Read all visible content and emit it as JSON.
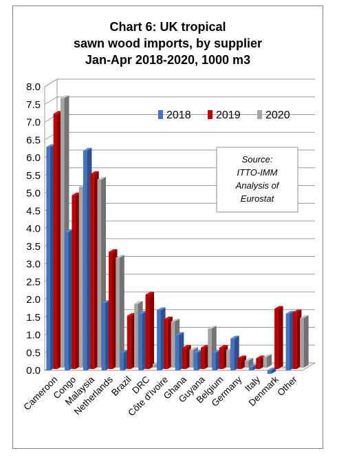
{
  "chart_data": {
    "type": "bar",
    "title_lines": [
      "Chart 6: UK tropical",
      "sawn wood imports, by supplier",
      "Jan-Apr 2018-2020, 1000 m3"
    ],
    "categories": [
      "Cameroon",
      "Congo",
      "Malaysia",
      "Netherlands",
      "Brazil",
      "DRC",
      "Côte d'Ivoire",
      "Ghana",
      "Guyana",
      "Belgium",
      "Germany",
      "Italy",
      "Denmark",
      "Other"
    ],
    "series": [
      {
        "name": "2018",
        "color": "#4472c4",
        "values": [
          6.3,
          3.9,
          6.2,
          1.9,
          0.5,
          1.6,
          1.7,
          1.0,
          0.5,
          0.5,
          0.9,
          0.1,
          -0.1,
          1.6
        ]
      },
      {
        "name": "2019",
        "color": "#c00000",
        "values": [
          7.2,
          4.9,
          5.5,
          3.3,
          1.5,
          2.1,
          1.4,
          0.6,
          0.6,
          0.6,
          0.3,
          0.3,
          1.7,
          1.6
        ]
      },
      {
        "name": "2020",
        "color": "#a5a5a5",
        "values": [
          7.6,
          5.1,
          5.3,
          3.1,
          1.8,
          0.1,
          1.3,
          0.5,
          1.1,
          0.5,
          0.2,
          0.3,
          0.0,
          1.4
        ]
      }
    ],
    "ylim": [
      0,
      8
    ],
    "yticks": [
      "0.0",
      "0.5",
      "1.0",
      "1.5",
      "2.0",
      "2.5",
      "3.0",
      "3.5",
      "4.0",
      "4.5",
      "5.0",
      "5.5",
      "6.0",
      "6.5",
      "7.0",
      "7.5",
      "8.0"
    ],
    "grid": true,
    "legend_position": "top-right",
    "annotation_lines": [
      "Source:",
      "ITTO-IMM",
      "Analysis of",
      "Eurostat"
    ]
  }
}
